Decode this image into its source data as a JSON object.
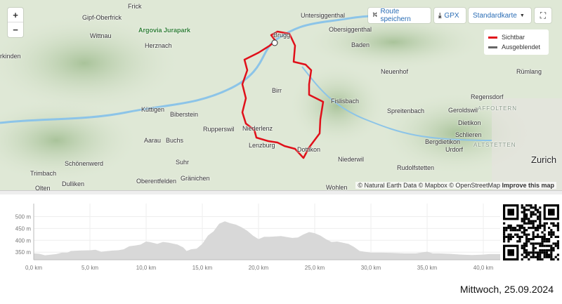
{
  "map": {
    "zoom_in": "+",
    "zoom_out": "−",
    "buttons": {
      "save_route": "Route speichern",
      "gpx": "GPX",
      "map_style": "Standardkarte"
    },
    "legend": [
      {
        "label": "Sichtbar",
        "color": "#e0101a"
      },
      {
        "label": "Ausgeblendet",
        "color": "#666666"
      }
    ],
    "places": [
      {
        "name": "Frick",
        "cls": ""
      },
      {
        "name": "Gipf-Oberfrick",
        "cls": ""
      },
      {
        "name": "Argovia Jurapark",
        "cls": "poi"
      },
      {
        "name": "Wittnau",
        "cls": ""
      },
      {
        "name": "Herznach",
        "cls": ""
      },
      {
        "name": "rkinden",
        "cls": ""
      },
      {
        "name": "Untersiggenthal",
        "cls": ""
      },
      {
        "name": "Obersiggenthal",
        "cls": ""
      },
      {
        "name": "Brugg",
        "cls": ""
      },
      {
        "name": "Baden",
        "cls": ""
      },
      {
        "name": "Neuenhof",
        "cls": ""
      },
      {
        "name": "Rümlang",
        "cls": ""
      },
      {
        "name": "Birr",
        "cls": ""
      },
      {
        "name": "Fislisbach",
        "cls": ""
      },
      {
        "name": "Regensdorf",
        "cls": ""
      },
      {
        "name": "Küttigen",
        "cls": ""
      },
      {
        "name": "Biberstein",
        "cls": ""
      },
      {
        "name": "Geroldswil",
        "cls": ""
      },
      {
        "name": "Spreitenbach",
        "cls": ""
      },
      {
        "name": "AFFOLTERN",
        "cls": "dis"
      },
      {
        "name": "Rupperswil",
        "cls": ""
      },
      {
        "name": "Niederlenz",
        "cls": ""
      },
      {
        "name": "Dietikon",
        "cls": ""
      },
      {
        "name": "Aarau",
        "cls": ""
      },
      {
        "name": "Buchs",
        "cls": ""
      },
      {
        "name": "Schlieren",
        "cls": ""
      },
      {
        "name": "Lenzburg",
        "cls": ""
      },
      {
        "name": "Dottikon",
        "cls": ""
      },
      {
        "name": "Bergdietikon",
        "cls": ""
      },
      {
        "name": "ALTSTETTEN",
        "cls": "dis"
      },
      {
        "name": "Schönenwerd",
        "cls": ""
      },
      {
        "name": "Suhr",
        "cls": ""
      },
      {
        "name": "Urdorf",
        "cls": ""
      },
      {
        "name": "Zurich",
        "cls": "big"
      },
      {
        "name": "Niederwil",
        "cls": ""
      },
      {
        "name": "Rudolfstetten",
        "cls": ""
      },
      {
        "name": "Trimbach",
        "cls": ""
      },
      {
        "name": "Oberentfelden",
        "cls": ""
      },
      {
        "name": "Gränichen",
        "cls": ""
      },
      {
        "name": "Olten",
        "cls": ""
      },
      {
        "name": "Dulliken",
        "cls": ""
      },
      {
        "name": "Wohlen",
        "cls": ""
      }
    ],
    "attribution": {
      "ned": "© Natural Earth Data",
      "mapbox": "© Mapbox",
      "osm": "© OpenStreetMap",
      "improve": "Improve this map"
    }
  },
  "chart_data": {
    "type": "area",
    "xlabel": "",
    "ylabel": "",
    "x_unit": "km",
    "y_unit": "m",
    "xlim": [
      0,
      41.5
    ],
    "ylim": [
      318,
      540
    ],
    "xticks": [
      "0,0 km",
      "5,0 km",
      "10,0 km",
      "15,0 km",
      "20,0 km",
      "25,0 km",
      "30,0 km",
      "35,0 km",
      "40,0 km"
    ],
    "yticks": [
      "350 m",
      "400 m",
      "450 m",
      "500 m"
    ],
    "grid": true,
    "fill_color": "#d8d8d8",
    "x": [
      0,
      0.5,
      1,
      2,
      2.5,
      3,
      3.3,
      4,
      5,
      5.5,
      6,
      7,
      7.5,
      8,
      8.5,
      9,
      9.5,
      10,
      10.3,
      11,
      11.5,
      12,
      12.8,
      13.3,
      13.6,
      14,
      14.5,
      15,
      15.5,
      16,
      16.5,
      17,
      17.5,
      18,
      18.5,
      19,
      19.5,
      20,
      20.5,
      21,
      22,
      23,
      23.5,
      24,
      24.5,
      25,
      25.5,
      26,
      26.5,
      27,
      28,
      28.5,
      29,
      30,
      31,
      32,
      33,
      34,
      35,
      35.5,
      36,
      37,
      38,
      39,
      40,
      40.5,
      41.5
    ],
    "y": [
      345,
      343,
      337,
      342,
      348,
      348,
      355,
      357,
      358,
      360,
      352,
      357,
      358,
      362,
      375,
      378,
      382,
      395,
      393,
      385,
      393,
      390,
      382,
      370,
      355,
      362,
      365,
      385,
      420,
      438,
      470,
      480,
      472,
      466,
      455,
      440,
      420,
      405,
      415,
      415,
      418,
      410,
      412,
      425,
      435,
      430,
      420,
      405,
      393,
      395,
      385,
      372,
      355,
      348,
      348,
      347,
      345,
      345,
      352,
      345,
      345,
      343,
      340,
      338,
      340,
      342,
      342
    ]
  },
  "footer": {
    "date": "Mittwoch, 25.09.2024"
  }
}
